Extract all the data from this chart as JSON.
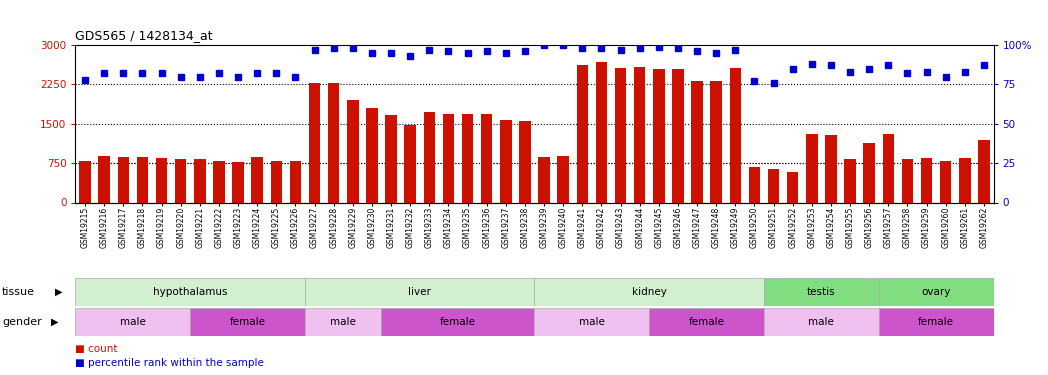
{
  "title": "GDS565 / 1428134_at",
  "samples": [
    "GSM19215",
    "GSM19216",
    "GSM19217",
    "GSM19218",
    "GSM19219",
    "GSM19220",
    "GSM19221",
    "GSM19222",
    "GSM19223",
    "GSM19224",
    "GSM19225",
    "GSM19226",
    "GSM19227",
    "GSM19228",
    "GSM19229",
    "GSM19230",
    "GSM19231",
    "GSM19232",
    "GSM19233",
    "GSM19234",
    "GSM19235",
    "GSM19236",
    "GSM19237",
    "GSM19238",
    "GSM19239",
    "GSM19240",
    "GSM19241",
    "GSM19242",
    "GSM19243",
    "GSM19244",
    "GSM19245",
    "GSM19246",
    "GSM19247",
    "GSM19248",
    "GSM19249",
    "GSM19250",
    "GSM19251",
    "GSM19252",
    "GSM19253",
    "GSM19254",
    "GSM19255",
    "GSM19256",
    "GSM19257",
    "GSM19258",
    "GSM19259",
    "GSM19260",
    "GSM19261",
    "GSM19262"
  ],
  "counts": [
    800,
    880,
    870,
    870,
    850,
    820,
    830,
    790,
    780,
    860,
    800,
    790,
    2270,
    2270,
    1950,
    1800,
    1660,
    1470,
    1720,
    1680,
    1680,
    1690,
    1580,
    1560,
    860,
    880,
    2620,
    2680,
    2560,
    2580,
    2550,
    2540,
    2310,
    2310,
    2560,
    680,
    640,
    590,
    1310,
    1280,
    820,
    1140,
    1310,
    820,
    850,
    800,
    850,
    1200
  ],
  "percentile": [
    78,
    82,
    82,
    82,
    82,
    80,
    80,
    82,
    80,
    82,
    82,
    80,
    97,
    98,
    98,
    95,
    95,
    93,
    97,
    96,
    95,
    96,
    95,
    96,
    100,
    100,
    98,
    98,
    97,
    98,
    99,
    98,
    96,
    95,
    97,
    77,
    76,
    85,
    88,
    87,
    83,
    85,
    87,
    82,
    83,
    80,
    83,
    87
  ],
  "tissue_groups": [
    {
      "label": "hypothalamus",
      "start": 0,
      "end": 12,
      "color": "#d0f0d0"
    },
    {
      "label": "liver",
      "start": 12,
      "end": 24,
      "color": "#d0f0d0"
    },
    {
      "label": "kidney",
      "start": 24,
      "end": 36,
      "color": "#d0f0d0"
    },
    {
      "label": "testis",
      "start": 36,
      "end": 42,
      "color": "#80dd80"
    },
    {
      "label": "ovary",
      "start": 42,
      "end": 48,
      "color": "#80dd80"
    }
  ],
  "gender_groups": [
    {
      "label": "male",
      "start": 0,
      "end": 6,
      "color": "#f0c0f0"
    },
    {
      "label": "female",
      "start": 6,
      "end": 12,
      "color": "#cc55cc"
    },
    {
      "label": "male",
      "start": 12,
      "end": 16,
      "color": "#f0c0f0"
    },
    {
      "label": "female",
      "start": 16,
      "end": 24,
      "color": "#cc55cc"
    },
    {
      "label": "male",
      "start": 24,
      "end": 30,
      "color": "#f0c0f0"
    },
    {
      "label": "female",
      "start": 30,
      "end": 36,
      "color": "#cc55cc"
    },
    {
      "label": "male",
      "start": 36,
      "end": 42,
      "color": "#f0c0f0"
    },
    {
      "label": "female",
      "start": 42,
      "end": 48,
      "color": "#cc55cc"
    }
  ],
  "bar_color": "#cc1100",
  "dot_color": "#0000cc",
  "ylim_left": [
    0,
    3000
  ],
  "ylim_right": [
    0,
    100
  ],
  "yticks_left": [
    0,
    750,
    1500,
    2250,
    3000
  ],
  "yticks_right": [
    0,
    25,
    50,
    75,
    100
  ],
  "grid_values": [
    750,
    1500,
    2250
  ],
  "male_color": "#f0c0f0",
  "female_color": "#cc55cc"
}
